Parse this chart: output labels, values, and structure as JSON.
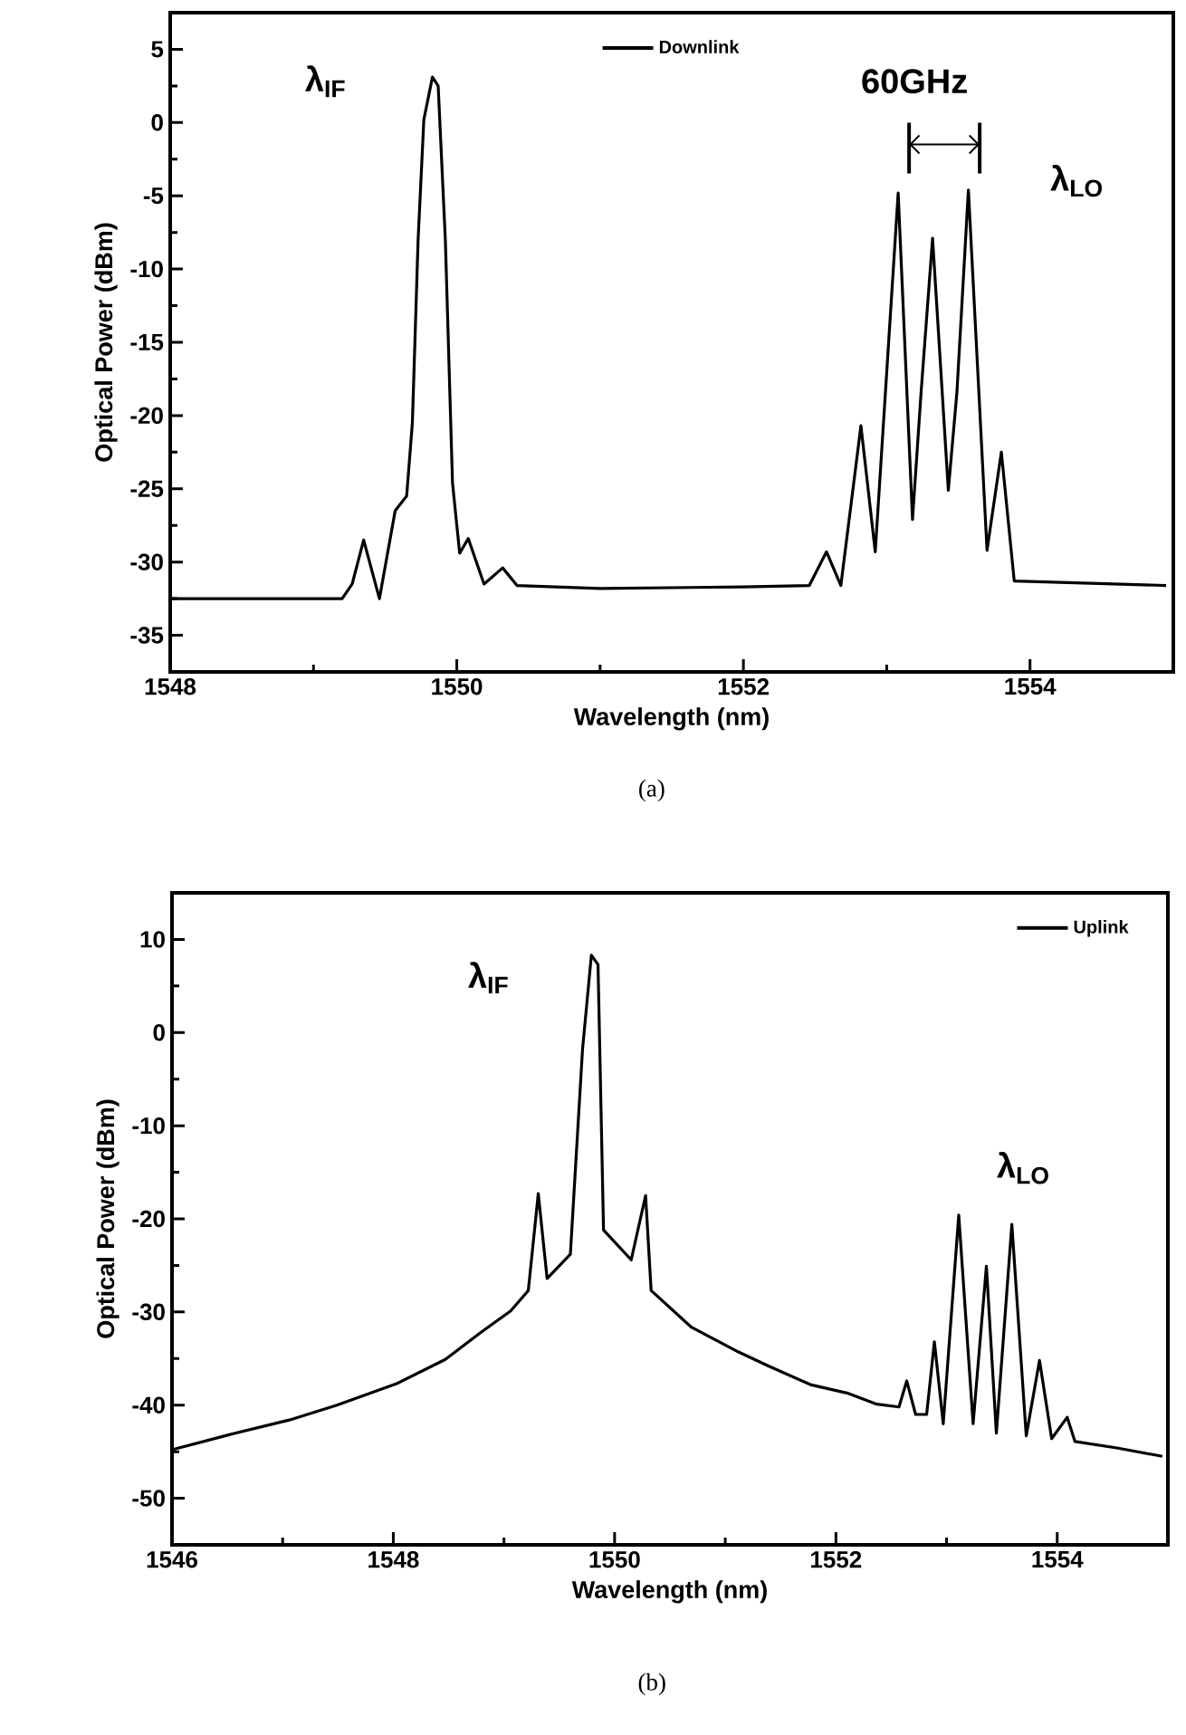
{
  "chart_data": [
    {
      "type": "line",
      "xlabel": "Wavelength (nm)",
      "ylabel": "Optical Power (dBm)",
      "xlim": [
        1548,
        1555
      ],
      "xticks": [
        1548,
        1550,
        1552,
        1554
      ],
      "ylim": [
        -37.5,
        7.5
      ],
      "yticks": [
        -35,
        -30,
        -25,
        -20,
        -15,
        -10,
        -5,
        0,
        5
      ],
      "legend": "top",
      "series": [
        {
          "name": "Downlink",
          "color": "#000000",
          "x": [
            1548,
            1549.2,
            1549.27,
            1549.35,
            1549.46,
            1549.57,
            1549.65,
            1549.69,
            1549.73,
            1549.77,
            1549.83,
            1549.87,
            1549.92,
            1549.97,
            1550.02,
            1550.08,
            1550.19,
            1550.32,
            1550.42,
            1551,
            1552,
            1552.46,
            1552.58,
            1552.68,
            1552.82,
            1552.92,
            1553.08,
            1553.18,
            1553.24,
            1553.32,
            1553.43,
            1553.49,
            1553.57,
            1553.7,
            1553.8,
            1553.89,
            1554.95
          ],
          "values": [
            -32.5,
            -32.5,
            -31.5,
            -28.5,
            -32.5,
            -26.5,
            -25.5,
            -20.5,
            -8,
            0.2,
            3.1,
            2.5,
            -8,
            -24.6,
            -29.4,
            -28.4,
            -31.5,
            -30.4,
            -31.6,
            -31.8,
            -31.7,
            -31.6,
            -29.3,
            -31.6,
            -20.7,
            -29.3,
            -4.8,
            -27.1,
            -18.4,
            -7.9,
            -25.1,
            -18.4,
            -4.6,
            -29.2,
            -22.5,
            -31.3,
            -31.6
          ]
        }
      ],
      "annotations": [
        "λ$_{IF}$",
        "60GHz",
        "λ$_{LO}$",
        "(a)"
      ]
    },
    {
      "type": "line",
      "xlabel": "Wavelength (nm)",
      "ylabel": "Optical Power (dBm)",
      "xlim": [
        1546,
        1555
      ],
      "xticks": [
        1546,
        1548,
        1550,
        1552,
        1554
      ],
      "ylim": [
        -55,
        15
      ],
      "yticks": [
        -50,
        -40,
        -30,
        -20,
        -10,
        0,
        10
      ],
      "legend": "top right",
      "series": [
        {
          "name": "Uplink",
          "color": "#000000",
          "x": [
            1546,
            1546.51,
            1547.06,
            1547.49,
            1548.03,
            1548.47,
            1548.79,
            1549.06,
            1549.22,
            1549.31,
            1549.39,
            1549.6,
            1549.71,
            1549.79,
            1549.85,
            1549.9,
            1550.15,
            1550.28,
            1550.33,
            1550.69,
            1551.12,
            1551.39,
            1551.77,
            1552.1,
            1552.37,
            1552.57,
            1552.64,
            1552.72,
            1552.82,
            1552.89,
            1552.97,
            1553.11,
            1553.24,
            1553.36,
            1553.45,
            1553.59,
            1553.72,
            1553.84,
            1553.95,
            1554.09,
            1554.16,
            1554.54,
            1554.95
          ],
          "values": [
            -44.8,
            -43.2,
            -41.6,
            -40,
            -37.7,
            -35.1,
            -32.2,
            -29.9,
            -27.7,
            -17.3,
            -26.4,
            -23.8,
            -1.8,
            8.3,
            7.3,
            -21.2,
            -24.4,
            -17.5,
            -27.7,
            -31.6,
            -34.3,
            -35.8,
            -37.8,
            -38.7,
            -39.9,
            -40.2,
            -37.4,
            -41,
            -41,
            -33.2,
            -42,
            -19.6,
            -42,
            -25.1,
            -43,
            -20.6,
            -43.3,
            -35.2,
            -43.6,
            -41.3,
            -43.9,
            -44.6,
            -45.5
          ]
        }
      ],
      "annotations": [
        "λ$_{IF}$",
        "λ$_{LO}$",
        "(b)"
      ]
    }
  ]
}
